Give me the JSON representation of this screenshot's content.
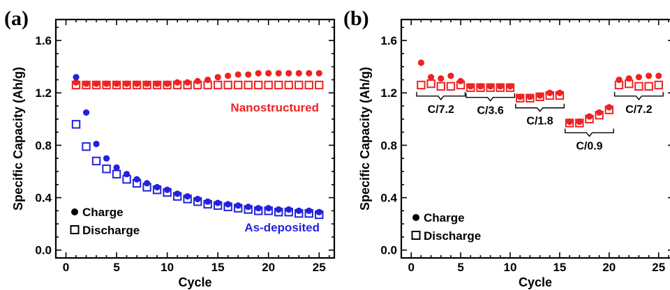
{
  "chart_data": [
    {
      "type": "scatter",
      "panel_label": "(a)",
      "xlabel": "Cycle",
      "ylabel": "Specific Capacity (Ah/g)",
      "xlim": [
        -1,
        26.5
      ],
      "ylim": [
        -0.06,
        1.76
      ],
      "xticks": [
        0,
        5,
        10,
        15,
        20,
        25
      ],
      "yticks": [
        0.0,
        0.4,
        0.8,
        1.2,
        1.6
      ],
      "ytick_labels": [
        "0.0",
        "0.4",
        "0.8",
        "1.2",
        "1.6"
      ],
      "legend": {
        "position": "bottom-left",
        "entries": [
          "Charge",
          "Discharge"
        ]
      },
      "annotations": [
        {
          "text": "Nanostructured",
          "color": "#ee2222"
        },
        {
          "text": "As-deposited",
          "color": "#2222dd"
        }
      ],
      "series": [
        {
          "marker": "filled-circle",
          "color": "#ee2222",
          "x": [
            1,
            2,
            3,
            4,
            5,
            6,
            7,
            8,
            9,
            10,
            11,
            12,
            13,
            14,
            15,
            16,
            17,
            18,
            19,
            20,
            21,
            22,
            23,
            24,
            25
          ],
          "y": [
            1.28,
            1.27,
            1.27,
            1.27,
            1.27,
            1.27,
            1.27,
            1.27,
            1.27,
            1.27,
            1.28,
            1.28,
            1.29,
            1.3,
            1.32,
            1.33,
            1.34,
            1.34,
            1.35,
            1.35,
            1.35,
            1.35,
            1.35,
            1.35,
            1.35
          ]
        },
        {
          "marker": "open-square",
          "color": "#ee2222",
          "x": [
            1,
            2,
            3,
            4,
            5,
            6,
            7,
            8,
            9,
            10,
            11,
            12,
            13,
            14,
            15,
            16,
            17,
            18,
            19,
            20,
            21,
            22,
            23,
            24,
            25
          ],
          "y": [
            1.26,
            1.26,
            1.26,
            1.26,
            1.26,
            1.26,
            1.26,
            1.26,
            1.26,
            1.26,
            1.26,
            1.26,
            1.26,
            1.26,
            1.26,
            1.26,
            1.26,
            1.26,
            1.26,
            1.26,
            1.26,
            1.26,
            1.26,
            1.26,
            1.26
          ]
        },
        {
          "marker": "filled-circle",
          "color": "#2222dd",
          "x": [
            1,
            2,
            3,
            4,
            5,
            6,
            7,
            8,
            9,
            10,
            11,
            12,
            13,
            14,
            15,
            16,
            17,
            18,
            19,
            20,
            21,
            22,
            23,
            24,
            25
          ],
          "y": [
            1.32,
            1.05,
            0.81,
            0.7,
            0.63,
            0.58,
            0.54,
            0.51,
            0.48,
            0.46,
            0.43,
            0.41,
            0.39,
            0.37,
            0.36,
            0.35,
            0.34,
            0.33,
            0.32,
            0.32,
            0.31,
            0.31,
            0.3,
            0.3,
            0.29
          ]
        },
        {
          "marker": "open-square",
          "color": "#2222dd",
          "x": [
            1,
            2,
            3,
            4,
            5,
            6,
            7,
            8,
            9,
            10,
            11,
            12,
            13,
            14,
            15,
            16,
            17,
            18,
            19,
            20,
            21,
            22,
            23,
            24,
            25
          ],
          "y": [
            0.96,
            0.79,
            0.68,
            0.62,
            0.58,
            0.54,
            0.51,
            0.48,
            0.46,
            0.44,
            0.41,
            0.39,
            0.37,
            0.35,
            0.34,
            0.33,
            0.32,
            0.31,
            0.3,
            0.3,
            0.29,
            0.29,
            0.28,
            0.28,
            0.27
          ]
        }
      ]
    },
    {
      "type": "scatter",
      "panel_label": "(b)",
      "xlabel": "Cycle",
      "ylabel": "Specific Capacity (Ah/g)",
      "xlim": [
        -1,
        26.5
      ],
      "ylim": [
        -0.06,
        1.76
      ],
      "xticks": [
        0,
        5,
        10,
        15,
        20,
        25
      ],
      "yticks": [
        0.0,
        0.4,
        0.8,
        1.2,
        1.6
      ],
      "ytick_labels": [
        "0.0",
        "0.4",
        "0.8",
        "1.2",
        "1.6"
      ],
      "legend": {
        "position": "bottom-left",
        "entries": [
          "Charge",
          "Discharge"
        ]
      },
      "rate_brackets": [
        {
          "label": "C/7.2",
          "from": 1,
          "to": 5
        },
        {
          "label": "C/3.6",
          "from": 6,
          "to": 10
        },
        {
          "label": "C/1.8",
          "from": 11,
          "to": 15
        },
        {
          "label": "C/0.9",
          "from": 16,
          "to": 20
        },
        {
          "label": "C/7.2",
          "from": 21,
          "to": 25
        }
      ],
      "series": [
        {
          "marker": "filled-circle",
          "color": "#ee2222",
          "x": [
            1,
            2,
            3,
            4,
            5,
            6,
            7,
            8,
            9,
            10,
            11,
            12,
            13,
            14,
            15,
            16,
            17,
            18,
            19,
            20,
            21,
            22,
            23,
            24,
            25
          ],
          "y": [
            1.43,
            1.32,
            1.31,
            1.33,
            1.29,
            1.25,
            1.25,
            1.25,
            1.25,
            1.25,
            1.17,
            1.17,
            1.18,
            1.2,
            1.2,
            0.98,
            0.98,
            1.02,
            1.05,
            1.09,
            1.3,
            1.31,
            1.32,
            1.33,
            1.33
          ]
        },
        {
          "marker": "open-square",
          "color": "#ee2222",
          "x": [
            1,
            2,
            3,
            4,
            5,
            6,
            7,
            8,
            9,
            10,
            11,
            12,
            13,
            14,
            15,
            16,
            17,
            18,
            19,
            20,
            21,
            22,
            23,
            24,
            25
          ],
          "y": [
            1.26,
            1.27,
            1.25,
            1.25,
            1.26,
            1.24,
            1.24,
            1.24,
            1.24,
            1.24,
            1.16,
            1.16,
            1.17,
            1.18,
            1.18,
            0.97,
            0.97,
            1.0,
            1.03,
            1.07,
            1.26,
            1.27,
            1.25,
            1.25,
            1.26
          ]
        }
      ]
    }
  ]
}
